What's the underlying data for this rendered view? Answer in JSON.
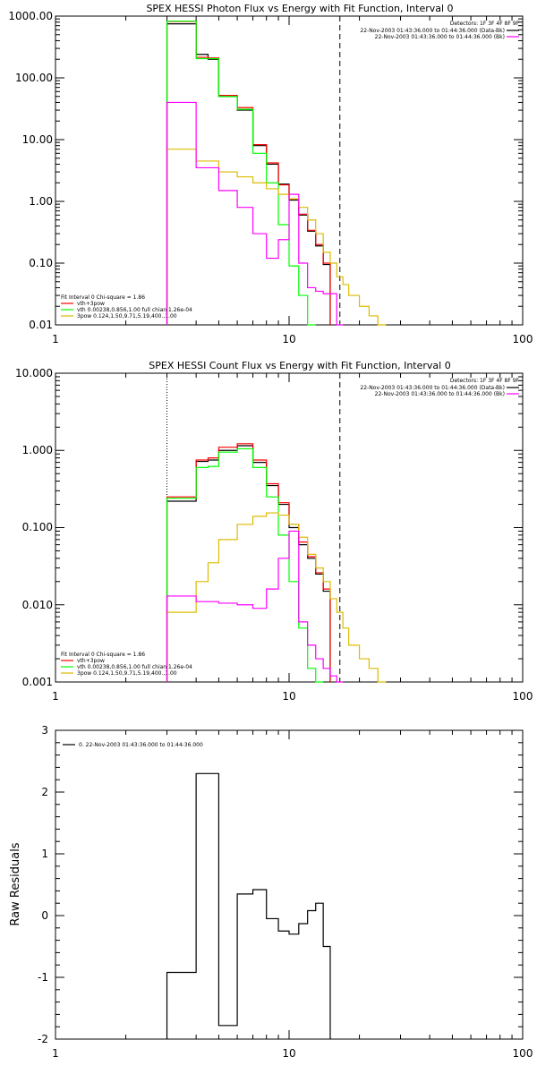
{
  "chart_data": [
    {
      "type": "line",
      "title": "SPEX HESSI Photon Flux vs Energy with Fit Function, Interval 0",
      "xscale": "log",
      "yscale": "log",
      "xlim": [
        1,
        100
      ],
      "ylim": [
        0.01,
        1000
      ],
      "x_tick_labels": [
        "1",
        "10",
        "100"
      ],
      "y_tick_labels": [
        "0.01",
        "0.10",
        "1.00",
        "10.00",
        "100.00",
        "1000.00"
      ],
      "edges": [
        3,
        3.5,
        4,
        4.5,
        5,
        6,
        7,
        8,
        9,
        10,
        11,
        12,
        13,
        14,
        15,
        16,
        17,
        18,
        20,
        22,
        24,
        26
      ],
      "vlines": [
        {
          "x": 3,
          "style": "dotted"
        },
        {
          "x": 16.5,
          "style": "dashed"
        }
      ],
      "top_right_legend": {
        "detectors": "Detectors: 1F 3F 4F 8F 9F",
        "rows": [
          {
            "text": "22-Nov-2003 01:43:36.000 to 01:44:36.000 (Data-Bk)",
            "color": "#000000"
          },
          {
            "text": "22-Nov-2003 01:43:36.000 to 01:44:36.000 (Bk)",
            "color": "#ff00ff"
          }
        ]
      },
      "fit_legend": {
        "header": "Fit Interval 0   Chi-square = 1.86",
        "rows": [
          {
            "text": "vth+3pow",
            "color": "#ff0000"
          },
          {
            "text": "vth 0.00238,0.856,1.00  full chian 1.26e-04",
            "color": "#00ff00"
          },
          {
            "text": "3pow 0.124,1.50,9.71,5.19,400.,1.00",
            "color": "#ddbb00"
          }
        ]
      },
      "series": [
        {
          "name": "Data-Bk",
          "color": "#000000",
          "values": [
            750,
            750,
            240,
            200,
            50,
            30,
            8,
            4,
            1.9,
            1.05,
            0.6,
            0.33,
            0.19,
            0.095
          ]
        },
        {
          "name": "vth+3pow",
          "color": "#ff0000",
          "values": [
            820,
            820,
            215,
            210,
            52,
            33,
            8.3,
            4.2,
            1.85,
            1.1,
            0.62,
            0.34,
            0.2,
            0.1
          ]
        },
        {
          "name": "vth",
          "color": "#00ff00",
          "values": [
            830,
            830,
            205,
            205,
            50,
            31,
            6,
            2,
            0.42,
            0.09,
            0.03,
            0.008
          ]
        },
        {
          "name": "3pow",
          "color": "#ddbb00",
          "values": [
            7,
            7,
            4.5,
            4.5,
            3,
            2.5,
            2,
            1.6,
            1.3,
            1.1,
            0.8,
            0.5,
            0.3,
            0.15,
            0.1,
            0.06,
            0.045,
            0.03,
            0.02,
            0.014,
            0.009
          ]
        },
        {
          "name": "Bk",
          "color": "#ff00ff",
          "values": [
            40,
            40,
            3.5,
            3.5,
            1.5,
            0.8,
            0.3,
            0.12,
            0.24,
            1.3,
            0.1,
            0.04,
            0.035,
            0.032,
            0.032,
            0.008
          ]
        }
      ]
    },
    {
      "type": "line",
      "title": "SPEX HESSI Count Flux vs Energy with Fit Function, Interval 0",
      "xscale": "log",
      "yscale": "log",
      "xlim": [
        1,
        100
      ],
      "ylim": [
        0.001,
        10
      ],
      "x_tick_labels": [
        "1",
        "10",
        "100"
      ],
      "y_tick_labels": [
        "0.001",
        "0.010",
        "0.100",
        "1.000",
        "10.000"
      ],
      "edges": [
        3,
        3.5,
        4,
        4.5,
        5,
        6,
        7,
        8,
        9,
        10,
        11,
        12,
        13,
        14,
        15,
        16,
        17,
        18,
        20,
        22,
        24,
        26
      ],
      "vlines": [
        {
          "x": 3,
          "style": "dotted"
        },
        {
          "x": 16.5,
          "style": "dashed"
        }
      ],
      "top_right_legend": {
        "detectors": "Detectors: 1F 3F 4F 8F 9F",
        "rows": [
          {
            "text": "22-Nov-2003 01:43:36.000 to 01:44:36.000 (Data-Bk)",
            "color": "#000000"
          },
          {
            "text": "22-Nov-2003 01:43:36.000 to 01:44:36.000 (Bk)",
            "color": "#ff00ff"
          }
        ]
      },
      "fit_legend": {
        "header": "Fit Interval 0   Chi-square = 1.86",
        "rows": [
          {
            "text": "vth+3pow",
            "color": "#ff0000"
          },
          {
            "text": "vth 0.00238,0.856,1.00  full chian 1.26e-04",
            "color": "#00ff00"
          },
          {
            "text": "3pow 0.124,1.50,9.71,5.19,400.,1.00",
            "color": "#ddbb00"
          }
        ]
      },
      "series": [
        {
          "name": "Data-Bk",
          "color": "#000000",
          "values": [
            0.22,
            0.22,
            0.72,
            0.75,
            1.0,
            1.15,
            0.7,
            0.35,
            0.2,
            0.1,
            0.06,
            0.04,
            0.025,
            0.015
          ]
        },
        {
          "name": "vth+3pow",
          "color": "#ff0000",
          "values": [
            0.25,
            0.25,
            0.75,
            0.8,
            1.1,
            1.22,
            0.75,
            0.37,
            0.21,
            0.11,
            0.065,
            0.042,
            0.026,
            0.016
          ]
        },
        {
          "name": "vth",
          "color": "#00ff00",
          "values": [
            0.24,
            0.24,
            0.6,
            0.62,
            0.95,
            1.05,
            0.6,
            0.25,
            0.08,
            0.02,
            0.005,
            0.0015,
            0.0008
          ]
        },
        {
          "name": "3pow",
          "color": "#ddbb00",
          "values": [
            0.008,
            0.008,
            0.02,
            0.035,
            0.07,
            0.11,
            0.14,
            0.155,
            0.145,
            0.11,
            0.075,
            0.045,
            0.03,
            0.02,
            0.012,
            0.008,
            0.005,
            0.003,
            0.002,
            0.0015,
            0.001
          ]
        },
        {
          "name": "Bk",
          "color": "#ff00ff",
          "values": [
            0.013,
            0.013,
            0.011,
            0.011,
            0.0105,
            0.01,
            0.009,
            0.016,
            0.04,
            0.09,
            0.006,
            0.003,
            0.002,
            0.0015,
            0.0012,
            0.0008
          ]
        }
      ]
    },
    {
      "type": "line",
      "title": "",
      "ylabel": "Raw Residuals",
      "xscale": "log",
      "yscale": "linear",
      "xlim": [
        1,
        100
      ],
      "ylim": [
        -2,
        3
      ],
      "x_tick_labels": [
        "1",
        "10",
        "100"
      ],
      "y_tick_labels": [
        "-2",
        "-1",
        "0",
        "1",
        "2",
        "3"
      ],
      "edges": [
        3,
        4,
        5,
        6,
        7,
        8,
        9,
        10,
        11,
        12,
        13,
        14,
        15,
        16.5
      ],
      "legend": [
        {
          "text": "0. 22-Nov-2003 01:43:36.000 to 01:44:36.000",
          "color": "#000000"
        }
      ],
      "series": [
        {
          "name": "0. 22-Nov-2003 01:43:36.000 to 01:44:36.000",
          "color": "#000000",
          "values": [
            -0.92,
            2.3,
            -1.78,
            0.35,
            0.42,
            -0.05,
            -0.25,
            -0.3,
            -0.13,
            0.08,
            0.2,
            -0.5
          ]
        }
      ]
    }
  ]
}
